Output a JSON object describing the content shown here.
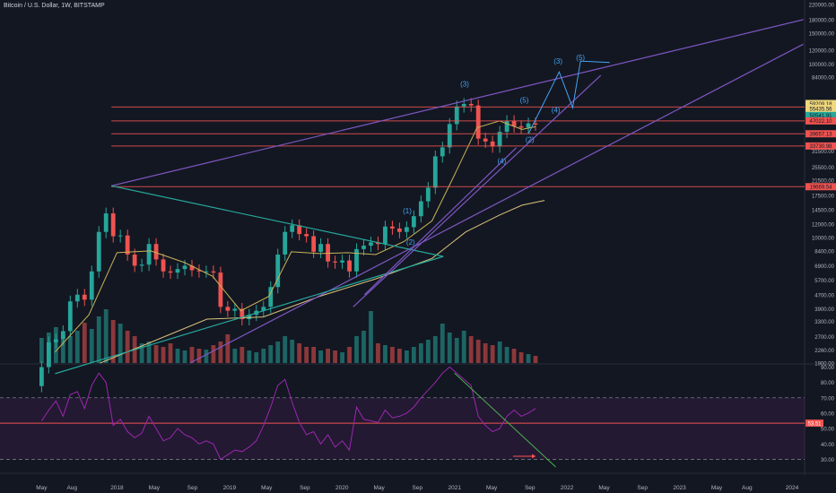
{
  "header": {
    "title": "Bitcoin / U.S. Dollar, 1W, BITSTAMP"
  },
  "colors": {
    "background": "#131722",
    "up": "#26a69a",
    "down": "#ef5350",
    "wedge": "#7e57c2",
    "triangle": "#26a69a",
    "ma_fast": "#c9b458",
    "ma_slow": "#d9c27a",
    "wave": "#42a5f5",
    "hline": "#ef5350",
    "rsi": "#9c27b0",
    "rsi_trend": "#4caf50",
    "arrow": "#ff5252"
  },
  "chart_data": [
    {
      "type": "candlestick",
      "title": "Bitcoin / U.S. Dollar, 1W, BITSTAMP",
      "scale": "log",
      "ylim": [
        1900,
        220000
      ],
      "y_ticks": [
        "220000.00",
        "180000.00",
        "150000.00",
        "120000.00",
        "100000.00",
        "84000.00",
        "47000.00",
        "31500.00",
        "25500.00",
        "21500.00",
        "17500.00",
        "14500.00",
        "12000.00",
        "10000.00",
        "8400.00",
        "6900.00",
        "5700.00",
        "4700.00",
        "3900.00",
        "3300.00",
        "2700.00",
        "2260.00",
        "1900.00"
      ],
      "y_tick_values": [
        220000,
        180000,
        150000,
        120000,
        100000,
        84000,
        47000,
        31500,
        25500,
        21500,
        17500,
        14500,
        12000,
        10000,
        8400,
        6900,
        5700,
        4700,
        3900,
        3300,
        2700,
        2260,
        1900
      ],
      "x_ticks": [
        "May",
        "Aug",
        "2018",
        "May",
        "Sep",
        "2019",
        "May",
        "Sep",
        "2020",
        "May",
        "Sep",
        "2021",
        "May",
        "Sep",
        "2022",
        "May",
        "Sep",
        "2023",
        "May",
        "Aug",
        "2024"
      ],
      "x_tick_years": [
        2017.33,
        2017.6,
        2018.0,
        2018.33,
        2018.67,
        2019.0,
        2019.33,
        2019.67,
        2020.0,
        2020.33,
        2020.67,
        2021.0,
        2021.33,
        2021.67,
        2022.0,
        2022.33,
        2022.67,
        2023.0,
        2023.33,
        2023.6,
        2024.0
      ],
      "price_labels": [
        {
          "text": "59209.18",
          "value": 59209.18,
          "color": "#f0d77c"
        },
        {
          "text": "55435.56",
          "value": 55435.56,
          "color": "#f0d77c"
        },
        {
          "text": "50541.91",
          "value": 50541.91,
          "color": "#26a69a"
        },
        {
          "text": "47022.10",
          "value": 47022.1,
          "color": "#ef5350"
        },
        {
          "text": "39657.13",
          "value": 39657.13,
          "color": "#ef5350"
        },
        {
          "text": "33730.98",
          "value": 33730.98,
          "color": "#ef5350"
        },
        {
          "text": "19669.54",
          "value": 19669.54,
          "color": "#ef5350"
        }
      ],
      "support_resistance": [
        56500,
        47022.1,
        39657.13,
        33730.98,
        19669.54
      ],
      "wave_labels": [
        {
          "text": "(1)",
          "x": 2020.58,
          "y": 13800
        },
        {
          "text": "(2)",
          "x": 2020.61,
          "y": 9100
        },
        {
          "text": "(3)",
          "x": 2021.09,
          "y": 74000
        },
        {
          "text": "(4)",
          "x": 2021.42,
          "y": 26700
        },
        {
          "text": "(5)",
          "x": 2021.62,
          "y": 60000
        },
        {
          "text": "(2)",
          "x": 2021.67,
          "y": 35600
        },
        {
          "text": "(4)",
          "x": 2021.9,
          "y": 52500
        },
        {
          "text": "(3)",
          "x": 2021.92,
          "y": 100500
        },
        {
          "text": "(5)",
          "x": 2022.12,
          "y": 105500
        }
      ],
      "projection_path": [
        [
          2021.66,
          40000
        ],
        [
          2021.93,
          90000
        ],
        [
          2022.05,
          56000
        ],
        [
          2022.12,
          104000
        ],
        [
          2022.38,
          102000
        ]
      ],
      "series": [
        {
          "type": "ohlc",
          "open": [
            1400,
            1800,
            2500,
            2600,
            2900,
            4300,
            4700,
            4400,
            6400,
            10800,
            13800,
            10200,
            10300,
            8000,
            6900,
            7000,
            9200,
            7500,
            6400,
            6300,
            6600,
            6900,
            6500,
            6400,
            6400,
            6300,
            4000,
            3800,
            3900,
            3400,
            3600,
            3800,
            4000,
            5200,
            8000,
            10800,
            11800,
            10500,
            10200,
            8300,
            9200,
            7300,
            7200,
            7400,
            6400,
            8600,
            9000,
            9400,
            9200,
            11600,
            11300,
            10800,
            11500,
            13300,
            16200,
            19400,
            29400,
            33100,
            45100,
            57000,
            58900,
            57700,
            37200,
            35800,
            33500,
            40700,
            47000,
            43800,
            43000,
            45500
          ],
          "close": [
            1800,
            2500,
            2600,
            2900,
            4300,
            4700,
            4400,
            6400,
            10800,
            13800,
            10200,
            10300,
            8000,
            6900,
            7000,
            9200,
            7500,
            6400,
            6300,
            6600,
            6900,
            6500,
            6400,
            6400,
            6300,
            4000,
            3800,
            3900,
            3400,
            3600,
            3800,
            4000,
            5200,
            8000,
            10800,
            11800,
            10500,
            10200,
            8300,
            9200,
            7300,
            7200,
            7400,
            6400,
            8600,
            9000,
            9400,
            9200,
            11600,
            11300,
            10800,
            11500,
            13300,
            16200,
            19400,
            29400,
            33100,
            45100,
            57000,
            58900,
            57700,
            37200,
            35800,
            33500,
            40700,
            47000,
            43800,
            43000,
            45500,
            44800
          ]
        },
        {
          "name": "MA fast",
          "x": [
            2017.45,
            2017.75,
            2018.0,
            2018.3,
            2018.6,
            2018.85,
            2019.1,
            2019.35,
            2019.55,
            2019.8,
            2020.05,
            2020.3,
            2020.55,
            2020.8,
            2021.0,
            2021.2,
            2021.4,
            2021.6,
            2021.72
          ],
          "values": [
            2200,
            3600,
            8200,
            8400,
            7200,
            6000,
            3800,
            4600,
            8300,
            8100,
            8200,
            8000,
            9500,
            12500,
            23000,
            43000,
            47000,
            42000,
            43500
          ]
        },
        {
          "name": "MA slow",
          "x": [
            2017.85,
            2018.3,
            2018.8,
            2019.3,
            2019.8,
            2020.3,
            2020.8,
            2021.1,
            2021.4,
            2021.6,
            2021.8
          ],
          "values": [
            1900,
            2500,
            3400,
            3500,
            4600,
            5800,
            7600,
            10800,
            13500,
            15400,
            16400
          ]
        }
      ],
      "trendlines": [
        {
          "name": "wedge-upper",
          "points": [
            [
              2017.95,
              19900
            ],
            [
              2024.1,
              180000
            ]
          ]
        },
        {
          "name": "wedge-lower",
          "points": [
            [
              2018.65,
              1900
            ],
            [
              2024.1,
              130000
            ]
          ]
        },
        {
          "name": "triangle-upper",
          "points": [
            [
              2017.95,
              19900
            ],
            [
              2020.9,
              7800
            ]
          ]
        },
        {
          "name": "triangle-lower",
          "points": [
            [
              2017.45,
              1650
            ],
            [
              2020.9,
              7800
            ]
          ]
        },
        {
          "name": "trend-2020",
          "points": [
            [
              2020.1,
              4000
            ],
            [
              2022.3,
              86000
            ]
          ]
        },
        {
          "name": "trend-2020b",
          "points": [
            [
              2020.2,
              4700
            ],
            [
              2021.55,
              33000
            ]
          ]
        }
      ],
      "volume": [
        28,
        34,
        40,
        26,
        30,
        36,
        45,
        38,
        52,
        60,
        48,
        44,
        36,
        30,
        22,
        24,
        20,
        18,
        22,
        16,
        14,
        18,
        16,
        15,
        20,
        24,
        32,
        16,
        18,
        14,
        12,
        16,
        20,
        24,
        30,
        26,
        22,
        18,
        18,
        14,
        16,
        14,
        12,
        18,
        30,
        36,
        58,
        22,
        20,
        18,
        16,
        14,
        18,
        22,
        26,
        30,
        44,
        34,
        28,
        36,
        30,
        26,
        22,
        20,
        24,
        18,
        16,
        12,
        10,
        8
      ]
    },
    {
      "type": "line",
      "title": "RSI",
      "ylim": [
        25,
        92
      ],
      "y_ticks": [
        "90.00",
        "80.00",
        "70.00",
        "60.00",
        "50.00",
        "40.00",
        "30.00"
      ],
      "y_tick_values": [
        90,
        80,
        70,
        60,
        50,
        40,
        30
      ],
      "levels": [
        70,
        30
      ],
      "current_label": {
        "text": "53.51",
        "value": 53.51
      },
      "values": [
        55,
        62,
        68,
        58,
        72,
        74,
        63,
        78,
        86,
        80,
        52,
        56,
        48,
        44,
        47,
        58,
        50,
        42,
        44,
        50,
        46,
        44,
        40,
        42,
        40,
        30,
        33,
        36,
        35,
        38,
        42,
        52,
        64,
        78,
        82,
        67,
        54,
        46,
        48,
        40,
        46,
        38,
        42,
        36,
        64,
        56,
        55,
        54,
        62,
        57,
        58,
        60,
        64,
        70,
        75,
        80,
        86,
        90,
        86,
        82,
        78,
        58,
        52,
        48,
        50,
        58,
        62,
        58,
        60,
        63
      ],
      "trendline": [
        [
          2021.0,
          86
        ],
        [
          2021.9,
          25
        ]
      ],
      "arrow": [
        [
          2021.52,
          32
        ],
        [
          2021.72,
          32
        ]
      ]
    }
  ]
}
